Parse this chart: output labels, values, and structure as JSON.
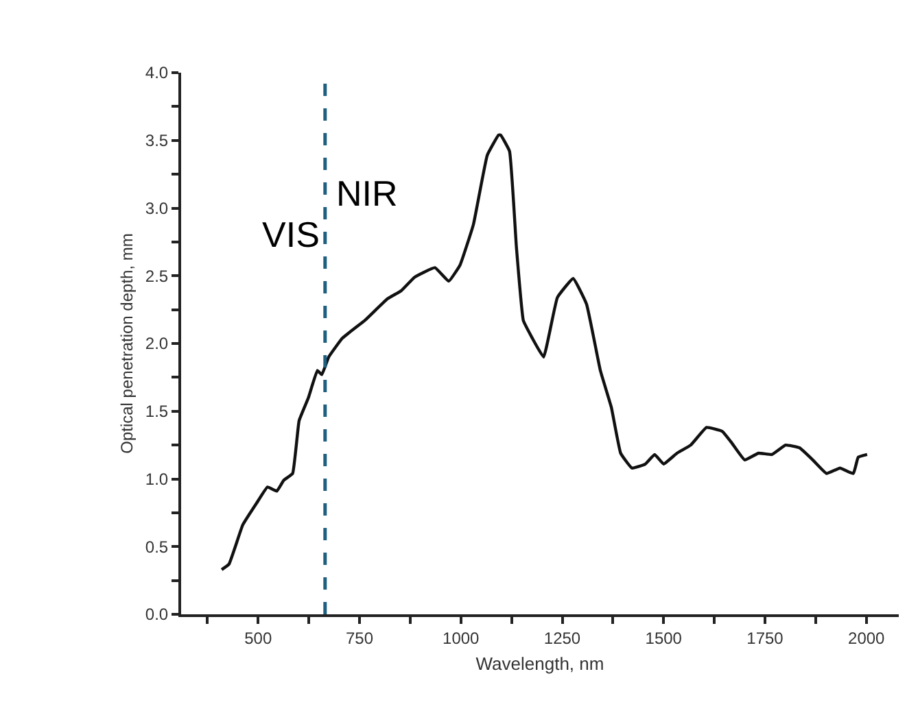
{
  "chart_data": {
    "type": "line",
    "xlabel": "Wavelength, nm",
    "ylabel": "Optical penetration depth, mm",
    "x": [
      410,
      428,
      462,
      496,
      523,
      546,
      563,
      585,
      601,
      624,
      646,
      657,
      674,
      708,
      763,
      819,
      853,
      886,
      936,
      970,
      998,
      1031,
      1065,
      1093,
      1098,
      1120,
      1137,
      1154,
      1176,
      1204,
      1238,
      1277,
      1310,
      1344,
      1371,
      1394,
      1422,
      1455,
      1478,
      1500,
      1533,
      1567,
      1606,
      1645,
      1667,
      1700,
      1734,
      1767,
      1801,
      1835,
      1868,
      1902,
      1935,
      1968,
      1980,
      2002
    ],
    "series": [
      {
        "color": "#111111",
        "values": [
          0.33,
          0.37,
          0.66,
          0.82,
          0.94,
          0.91,
          0.99,
          1.04,
          1.43,
          1.6,
          1.8,
          1.77,
          1.9,
          2.04,
          2.17,
          2.33,
          2.39,
          2.49,
          2.56,
          2.46,
          2.58,
          2.88,
          3.39,
          3.54,
          3.54,
          3.42,
          2.71,
          2.17,
          2.04,
          1.9,
          2.34,
          2.48,
          2.29,
          1.8,
          1.53,
          1.19,
          1.08,
          1.11,
          1.18,
          1.11,
          1.19,
          1.25,
          1.38,
          1.35,
          1.27,
          1.14,
          1.19,
          1.18,
          1.25,
          1.23,
          1.14,
          1.04,
          1.08,
          1.04,
          1.16,
          1.18
        ]
      }
    ],
    "xlim": [
      310,
      2080
    ],
    "ylim": [
      0,
      4.0
    ],
    "xticks": [
      {
        "value": 375,
        "label": null
      },
      500,
      {
        "value": 625,
        "label": null
      },
      750,
      {
        "value": 875,
        "label": null
      },
      1000,
      {
        "value": 1125,
        "label": null
      },
      1250,
      {
        "value": 1375,
        "label": null
      },
      1500,
      {
        "value": 1625,
        "label": null
      },
      1750,
      {
        "value": 1875,
        "label": null
      },
      2000
    ],
    "yticks": [
      {
        "value": 0,
        "label": "0.0"
      },
      {
        "value": 0.25,
        "label": null
      },
      {
        "value": 0.5,
        "label": "0.5"
      },
      {
        "value": 0.75,
        "label": null
      },
      {
        "value": 1.0,
        "label": "1.0"
      },
      {
        "value": 1.25,
        "label": null
      },
      {
        "value": 1.5,
        "label": "1.5"
      },
      {
        "value": 1.75,
        "label": null
      },
      {
        "value": 2.0,
        "label": "2.0"
      },
      {
        "value": 2.25,
        "label": null
      },
      {
        "value": 2.5,
        "label": "2.5"
      },
      {
        "value": 2.75,
        "label": null
      },
      {
        "value": 3.0,
        "label": "3.0"
      },
      {
        "value": 3.25,
        "label": null
      },
      {
        "value": 3.5,
        "label": "3.5"
      },
      {
        "value": 3.75,
        "label": null
      },
      {
        "value": 4.0,
        "label": "4.0"
      }
    ],
    "ref_lines": [
      {
        "axis": "x",
        "value": 665,
        "color": "#1f5f80",
        "line_style": "dashed"
      }
    ],
    "annotations": [
      "VIS",
      "NIR"
    ],
    "marker": "none",
    "line_style": "solid"
  }
}
